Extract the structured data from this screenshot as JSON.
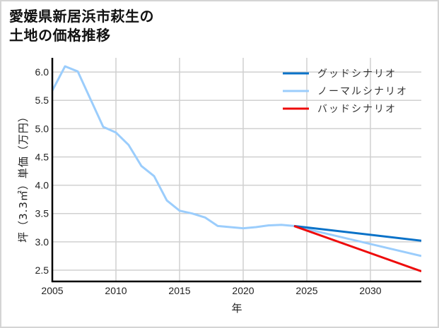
{
  "title": {
    "line1": "愛媛県新居浜市萩生の",
    "line2": "土地の価格推移"
  },
  "colors": {
    "good": "#0a72c8",
    "normal": "#9bcdfc",
    "bad": "#ee0b0b",
    "grid": "#d0d0d0",
    "axis": "#000000"
  },
  "chart_data": {
    "type": "line",
    "title": "愛媛県新居浜市萩生の土地の価格推移",
    "xlabel": "年",
    "ylabel": "坪（3.3㎡）単価（万円）",
    "xlim": [
      2005,
      2034
    ],
    "ylim": [
      2.3,
      6.25
    ],
    "xticks": [
      2005,
      2010,
      2015,
      2020,
      2025,
      2030
    ],
    "yticks": [
      2.5,
      3.0,
      3.5,
      4.0,
      4.5,
      5.0,
      5.5,
      6.0
    ],
    "ytick_labels": [
      "2.5",
      "3.0",
      "3.5",
      "4.0",
      "4.5",
      "5.0",
      "5.5",
      "6.0"
    ],
    "grid": true,
    "legend_position": "upper right",
    "series": [
      {
        "name": "グッドシナリオ",
        "color": "#0a72c8",
        "x": [
          2024,
          2034
        ],
        "values": [
          3.28,
          3.02
        ]
      },
      {
        "name": "ノーマルシナリオ",
        "color": "#9bcdfc",
        "x": [
          2005,
          2006,
          2007,
          2008,
          2009,
          2010,
          2011,
          2012,
          2013,
          2014,
          2015,
          2016,
          2017,
          2018,
          2019,
          2020,
          2021,
          2022,
          2023,
          2024,
          2034
        ],
        "values": [
          5.67,
          6.1,
          6.01,
          5.52,
          5.03,
          4.93,
          4.71,
          4.34,
          4.16,
          3.73,
          3.55,
          3.5,
          3.43,
          3.28,
          3.26,
          3.24,
          3.26,
          3.29,
          3.3,
          3.28,
          2.75
        ]
      },
      {
        "name": "バッドシナリオ",
        "color": "#ee0b0b",
        "x": [
          2024,
          2034
        ],
        "values": [
          3.28,
          2.48
        ]
      }
    ]
  }
}
